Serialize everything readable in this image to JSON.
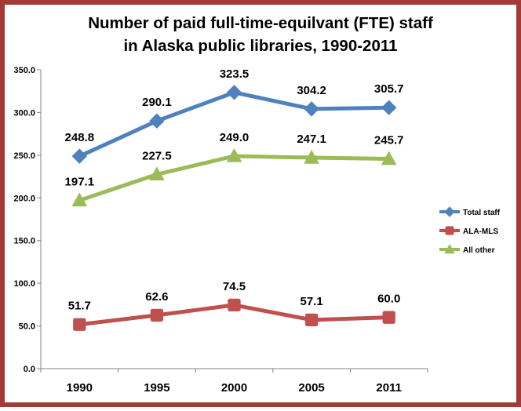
{
  "chart_data": {
    "type": "line",
    "title_lines": [
      "Number of paid full-time-equilvant (FTE) staff",
      "in Alaska public libraries, 1990-2011"
    ],
    "categories": [
      "1990",
      "1995",
      "2000",
      "2005",
      "2011"
    ],
    "ylim": [
      0,
      350
    ],
    "ytick_labels": [
      "0.0",
      "50.0",
      "100.0",
      "150.0",
      "200.0",
      "250.0",
      "300.0",
      "350.0"
    ],
    "grid": false,
    "legend_position": "right",
    "series": [
      {
        "name": "Total staff",
        "values": [
          248.8,
          290.1,
          323.5,
          304.2,
          305.7
        ],
        "labels": [
          "248.8",
          "290.1",
          "323.5",
          "304.2",
          "305.7"
        ],
        "color": "#4f81bd",
        "marker": "diamond"
      },
      {
        "name": "ALA-MLS",
        "values": [
          51.7,
          62.6,
          74.5,
          57.1,
          60.0
        ],
        "labels": [
          "51.7",
          "62.6",
          "74.5",
          "57.1",
          "60.0"
        ],
        "color": "#c0504d",
        "marker": "square"
      },
      {
        "name": "All other",
        "values": [
          197.1,
          227.5,
          249.0,
          247.1,
          245.7
        ],
        "labels": [
          "197.1",
          "227.5",
          "249.0",
          "247.1",
          "245.7"
        ],
        "color": "#9bbb59",
        "marker": "triangle"
      }
    ]
  },
  "colors": {
    "frame": "#a33a36",
    "axis": "#868686"
  }
}
